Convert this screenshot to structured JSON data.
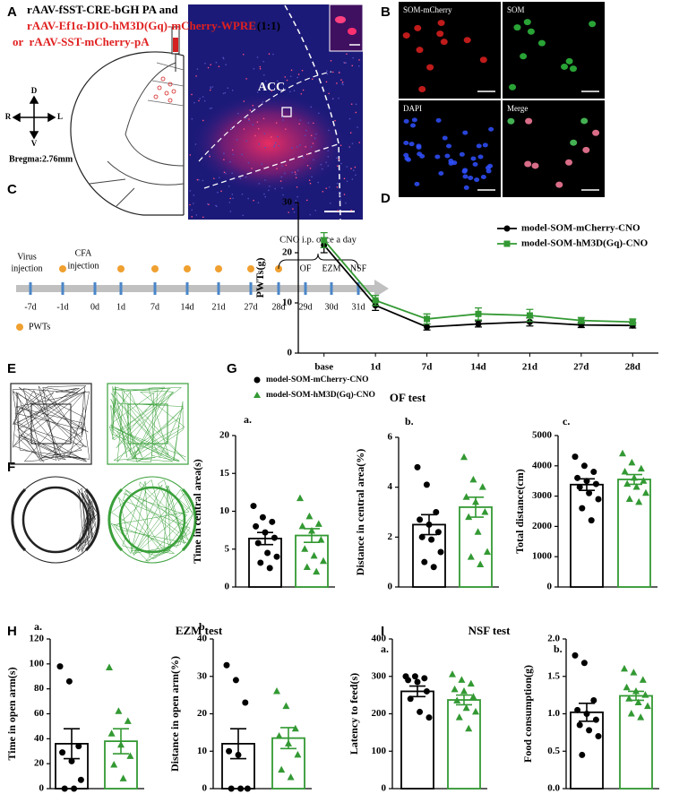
{
  "figure": {
    "panel_letters": [
      "A",
      "B",
      "C",
      "D",
      "E",
      "F",
      "G",
      "H",
      "I"
    ],
    "panel_a": {
      "line1": "rAAV-fSST-CRE-bGH PA and",
      "line2": "rAAV-Ef1α-DIO-hM3D(Gq)-mCherry-WPRE",
      "line2_suffix": "(1:1)",
      "line3": "or  rAAV-SST-mCherry-pA",
      "compass": [
        "D",
        "R",
        "L",
        "V"
      ],
      "bregma": "Bregma:2.76mm",
      "region": "ACC"
    },
    "panel_b": [
      "SOM-mCherry",
      "SOM",
      "DAPI",
      "Merge"
    ],
    "panel_c": {
      "virus": [
        "Virus",
        "injection"
      ],
      "cfa": [
        "CFA",
        "injection"
      ],
      "cno": "CNO i.p. once a day",
      "tests": [
        "OF",
        "EZM",
        "NSF"
      ],
      "pwt_legend": "PWTs",
      "days": [
        {
          "label": "-7d",
          "pwt": false
        },
        {
          "label": "-1d",
          "pwt": true
        },
        {
          "label": "0d",
          "pwt": false
        },
        {
          "label": "1d",
          "pwt": true
        },
        {
          "label": "7d",
          "pwt": true
        },
        {
          "label": "14d",
          "pwt": true
        },
        {
          "label": "21d",
          "pwt": true
        },
        {
          "label": "27d",
          "pwt": true
        },
        {
          "label": "28d",
          "pwt": true
        },
        {
          "label": "29d",
          "pwt": false
        },
        {
          "label": "30d",
          "pwt": false
        },
        {
          "label": "31d",
          "pwt": false
        }
      ]
    },
    "groups": [
      {
        "name": "model-SOM-mCherry-CNO",
        "color": "#000000",
        "marker": "circle"
      },
      {
        "name": "model-SOM-hM3D(Gq)-CNO",
        "color": "#339933",
        "marker": "triangle"
      }
    ],
    "sections": [
      "OF test",
      "EZM test",
      "NSF test"
    ]
  },
  "chart_data": [
    {
      "type": "line",
      "ylabel": "PWTs(g)",
      "categories": [
        "base",
        "1d",
        "7d",
        "14d",
        "21d",
        "27d",
        "28d"
      ],
      "ylim": [
        0,
        30
      ],
      "yticks": [
        0,
        10,
        20,
        30
      ],
      "series": [
        {
          "name": "model-SOM-mCherry-CNO",
          "color": "#000000",
          "marker": "circle",
          "values": [
            21.5,
            9.5,
            5.2,
            5.8,
            6.2,
            5.6,
            5.5
          ],
          "errors": [
            1.5,
            1.0,
            0.6,
            0.6,
            0.8,
            0.5,
            0.5
          ]
        },
        {
          "name": "model-SOM-hM3D(Gq)-CNO",
          "color": "#339933",
          "marker": "square",
          "values": [
            22.5,
            10.5,
            6.8,
            7.8,
            7.5,
            6.5,
            6.2
          ],
          "errors": [
            1.5,
            1.0,
            1.0,
            1.2,
            1.2,
            0.6,
            0.6
          ]
        }
      ]
    },
    {
      "type": "bar",
      "label": "a.",
      "ylabel": "Time in central area(s)",
      "ylim": [
        0,
        20
      ],
      "yticks": [
        0,
        5,
        10,
        15,
        20
      ],
      "series": [
        {
          "color": "#000000",
          "marker": "circle",
          "value": 6.4,
          "error": 0.8,
          "points": [
            10.7,
            9.2,
            8.6,
            8.0,
            7.2,
            6.5,
            5.8,
            4.5,
            4.0,
            3.2,
            2.5
          ]
        },
        {
          "color": "#339933",
          "marker": "triangle",
          "value": 6.8,
          "error": 0.9,
          "points": [
            11.7,
            9.3,
            8.3,
            8.0,
            7.4,
            6.2,
            5.0,
            4.1,
            3.4,
            2.6,
            2.0
          ]
        }
      ]
    },
    {
      "type": "bar",
      "label": "b.",
      "ylabel": "Distance in central area(%)",
      "ylim": [
        0,
        6
      ],
      "yticks": [
        0,
        2,
        4,
        6
      ],
      "series": [
        {
          "color": "#000000",
          "marker": "circle",
          "value": 2.5,
          "error": 0.4,
          "points": [
            4.8,
            4.1,
            3.0,
            2.7,
            2.5,
            2.2,
            2.0,
            1.9,
            1.4,
            1.0,
            0.8
          ]
        },
        {
          "color": "#339933",
          "marker": "triangle",
          "value": 3.2,
          "error": 0.4,
          "points": [
            5.2,
            4.3,
            4.0,
            3.6,
            3.4,
            3.0,
            2.8,
            2.2,
            1.4,
            1.2,
            0.9
          ]
        }
      ]
    },
    {
      "type": "bar",
      "label": "c.",
      "ylabel": "Total distance(cm)",
      "ylim": [
        0,
        5000
      ],
      "yticks": [
        0,
        1000,
        2000,
        3000,
        4000,
        5000
      ],
      "series": [
        {
          "color": "#000000",
          "marker": "circle",
          "value": 3380,
          "error": 190,
          "points": [
            4300,
            4000,
            3800,
            3600,
            3500,
            3400,
            3300,
            3100,
            2900,
            2600,
            2200
          ]
        },
        {
          "color": "#339933",
          "marker": "triangle",
          "value": 3550,
          "error": 160,
          "points": [
            4400,
            4100,
            3900,
            3800,
            3600,
            3500,
            3400,
            3300,
            3100,
            2900,
            2800
          ]
        }
      ]
    },
    {
      "type": "bar",
      "label": "a.",
      "ylabel": "Time in open arm(s)",
      "ylim": [
        0,
        120
      ],
      "yticks": [
        0,
        20,
        40,
        60,
        80,
        100,
        120
      ],
      "series": [
        {
          "color": "#000000",
          "marker": "circle",
          "value": 36,
          "error": 12,
          "points": [
            98,
            86,
            34,
            29,
            22,
            7,
            0,
            0
          ]
        },
        {
          "color": "#339933",
          "marker": "triangle",
          "value": 38,
          "error": 10,
          "points": [
            97,
            62,
            54,
            44,
            35,
            26,
            19,
            8
          ]
        }
      ]
    },
    {
      "type": "bar",
      "label": "b.",
      "ylabel": "Distance in open arm(%)",
      "ylim": [
        0,
        40
      ],
      "yticks": [
        0,
        10,
        20,
        30,
        40
      ],
      "series": [
        {
          "color": "#000000",
          "marker": "circle",
          "value": 12,
          "error": 4,
          "points": [
            33,
            29,
            23,
            10,
            9,
            0,
            0,
            0
          ]
        },
        {
          "color": "#339933",
          "marker": "triangle",
          "value": 13.5,
          "error": 2.8,
          "points": [
            26,
            22,
            16,
            14,
            12,
            9,
            5,
            3
          ]
        }
      ]
    },
    {
      "type": "bar",
      "label": "a.",
      "ylabel": "Latency to feed(s)",
      "ylim": [
        0,
        400
      ],
      "yticks": [
        0,
        100,
        200,
        300,
        400
      ],
      "series": [
        {
          "color": "#000000",
          "marker": "circle",
          "value": 260,
          "error": 14,
          "points": [
            300,
            300,
            295,
            290,
            285,
            260,
            240,
            205,
            190
          ]
        },
        {
          "color": "#339933",
          "marker": "triangle",
          "value": 237,
          "error": 13,
          "points": [
            305,
            290,
            280,
            265,
            260,
            245,
            235,
            215,
            205,
            190,
            160
          ]
        }
      ]
    },
    {
      "type": "bar",
      "label": "b.",
      "ylabel": "Food consumption(g)",
      "ylim": [
        0,
        2
      ],
      "yticks": [
        {
          "value": 0,
          "label": "0.0"
        },
        0.5,
        {
          "value": 1,
          "label": "1.0"
        },
        1.5,
        {
          "value": 2,
          "label": "2.0"
        }
      ],
      "series": [
        {
          "color": "#000000",
          "marker": "circle",
          "value": 1.02,
          "error": 0.12,
          "points": [
            1.78,
            1.68,
            1.18,
            1.05,
            1.0,
            0.92,
            0.85,
            0.78,
            0.7,
            0.45
          ]
        },
        {
          "color": "#339933",
          "marker": "triangle",
          "value": 1.24,
          "error": 0.06,
          "points": [
            1.6,
            1.55,
            1.45,
            1.35,
            1.3,
            1.25,
            1.2,
            1.15,
            1.1,
            1.0,
            0.95
          ]
        }
      ]
    }
  ]
}
